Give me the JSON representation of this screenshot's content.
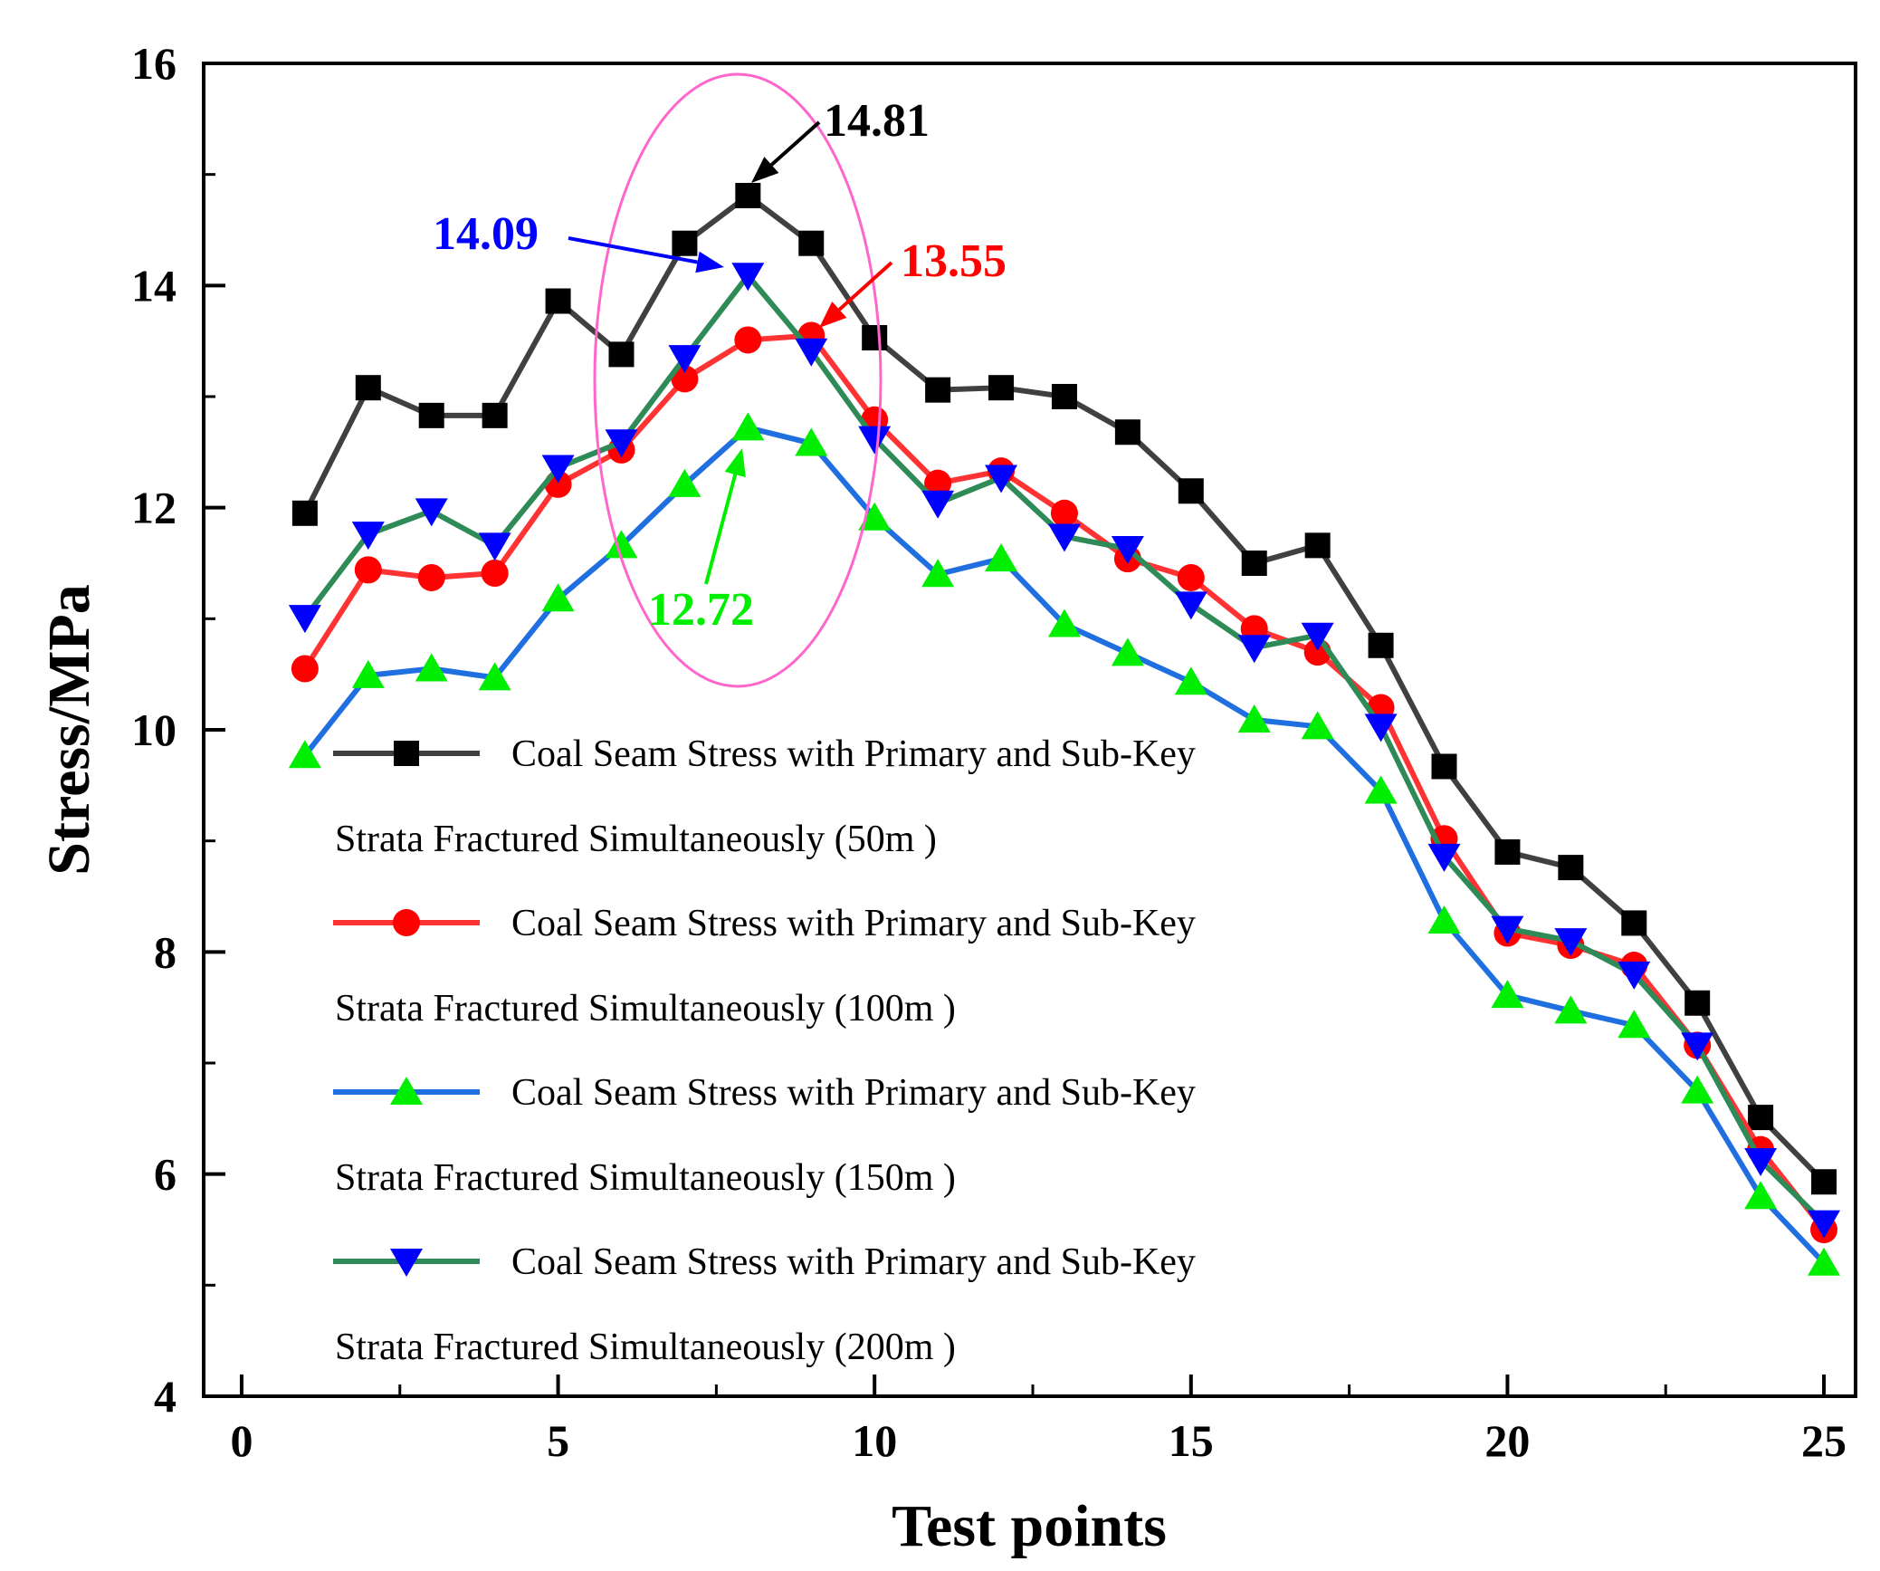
{
  "chart_data": {
    "type": "line",
    "title": "",
    "xlabel": "Test points",
    "ylabel": "Stress/MPa",
    "xlim": [
      -0.6,
      25.5
    ],
    "ylim": [
      4,
      16
    ],
    "xticks": [
      0,
      5,
      10,
      15,
      20,
      25
    ],
    "yticks": [
      4,
      6,
      8,
      10,
      12,
      14,
      16
    ],
    "x": [
      1,
      2,
      3,
      4,
      5,
      6,
      7,
      8,
      9,
      10,
      11,
      12,
      13,
      14,
      15,
      16,
      17,
      18,
      19,
      20,
      21,
      22,
      23,
      24,
      25
    ],
    "series": [
      {
        "name": "Coal Seam Stress with Primary and Sub-Key Strata Fractured Simultaneously (50m )",
        "legend_line1": "Coal Seam Stress with Primary and Sub-Key",
        "legend_line2": "Strata Fractured Simultaneously (50m )",
        "line_color": "#404040",
        "marker_color": "#000000",
        "marker": "square",
        "values": [
          11.95,
          13.08,
          12.83,
          12.83,
          13.86,
          13.38,
          14.38,
          14.81,
          14.38,
          13.53,
          13.06,
          13.08,
          13.0,
          12.68,
          12.15,
          11.5,
          11.66,
          10.76,
          9.67,
          8.9,
          8.76,
          8.26,
          7.54,
          6.51,
          5.93
        ]
      },
      {
        "name": "Coal Seam Stress with Primary and Sub-Key Strata Fractured Simultaneously (100m )",
        "legend_line1": "Coal Seam Stress with Primary and Sub-Key",
        "legend_line2": "Strata Fractured Simultaneously (100m )",
        "line_color": "#ff3333",
        "marker_color": "#ff0000",
        "marker": "circle",
        "values": [
          10.55,
          11.44,
          11.37,
          11.41,
          12.21,
          12.52,
          13.16,
          13.51,
          13.55,
          12.79,
          12.22,
          12.33,
          11.95,
          11.54,
          11.37,
          10.91,
          10.7,
          10.2,
          9.02,
          8.17,
          8.06,
          7.88,
          7.16,
          6.22,
          5.5
        ]
      },
      {
        "name": "Coal Seam Stress with Primary and Sub-Key Strata Fractured Simultaneously (150m )",
        "legend_line1": "Coal Seam Stress with Primary and Sub-Key",
        "legend_line2": "Strata Fractured Simultaneously (150m )",
        "line_color": "#1f6fe0",
        "marker_color": "#00ee00",
        "marker": "triangle-up",
        "values": [
          9.77,
          10.49,
          10.55,
          10.47,
          11.18,
          11.66,
          12.21,
          12.72,
          12.58,
          11.91,
          11.4,
          11.54,
          10.95,
          10.69,
          10.43,
          10.09,
          10.03,
          9.45,
          8.28,
          7.61,
          7.47,
          7.34,
          6.75,
          5.8,
          5.2
        ]
      },
      {
        "name": "Coal Seam Stress with Primary and Sub-Key Strata Fractured Simultaneously (200m )",
        "legend_line1": "Coal Seam Stress with Primary and Sub-Key",
        "legend_line2": "Strata Fractured Simultaneously (200m )",
        "line_color": "#2e8b57",
        "marker_color": "#0000ff",
        "marker": "triangle-down",
        "values": [
          11.01,
          11.76,
          11.97,
          11.66,
          12.36,
          12.59,
          13.35,
          14.09,
          13.41,
          12.62,
          12.04,
          12.27,
          11.74,
          11.63,
          11.13,
          10.74,
          10.85,
          10.03,
          8.86,
          8.21,
          8.1,
          7.8,
          7.16,
          6.12,
          5.56
        ]
      }
    ],
    "annotations": [
      {
        "text": "14.81",
        "x": 8,
        "y": 14.81,
        "color": "#000000"
      },
      {
        "text": "14.09",
        "x": 8,
        "y": 14.09,
        "color": "#0000ff"
      },
      {
        "text": "13.55",
        "x": 9,
        "y": 13.55,
        "color": "#ff0000"
      },
      {
        "text": "12.72",
        "x": 8,
        "y": 12.72,
        "color": "#00ee00"
      }
    ],
    "highlight_ellipse_color": "#ff66cc",
    "legend_position": "lower-left",
    "grid": false
  }
}
